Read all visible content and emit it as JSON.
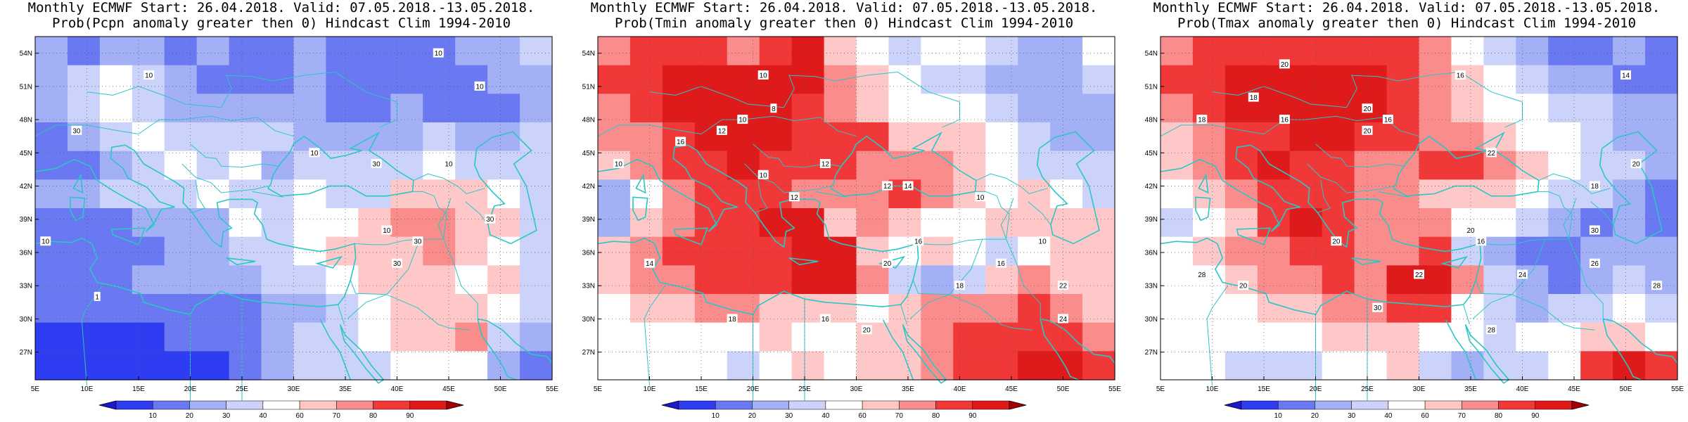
{
  "panels": [
    {
      "title_line1": "Monthly ECMWF Start: 26.04.2018. Valid: 07.05.2018.-13.05.2018.",
      "title_line2": "Prob(Pcpn anomaly greater then 0) Hindcast Clim 1994-2010",
      "variable": "Pcpn",
      "field": [
        [
          30,
          20,
          30,
          30,
          20,
          30,
          20,
          20,
          30,
          20,
          20,
          20,
          20,
          30,
          30,
          40
        ],
        [
          30,
          40,
          50,
          40,
          30,
          20,
          20,
          20,
          30,
          20,
          20,
          20,
          20,
          20,
          30,
          30
        ],
        [
          30,
          40,
          50,
          40,
          30,
          30,
          30,
          30,
          30,
          20,
          20,
          30,
          20,
          20,
          20,
          30
        ],
        [
          20,
          30,
          40,
          50,
          40,
          40,
          40,
          40,
          30,
          30,
          30,
          30,
          40,
          30,
          30,
          40
        ],
        [
          20,
          20,
          30,
          40,
          50,
          40,
          50,
          30,
          40,
          40,
          40,
          40,
          50,
          40,
          40,
          40
        ],
        [
          30,
          30,
          40,
          40,
          40,
          50,
          40,
          40,
          50,
          40,
          40,
          60,
          60,
          60,
          50,
          40
        ],
        [
          20,
          20,
          20,
          30,
          30,
          30,
          50,
          40,
          50,
          50,
          60,
          70,
          70,
          60,
          60,
          40
        ],
        [
          20,
          20,
          20,
          20,
          30,
          30,
          40,
          40,
          50,
          60,
          60,
          60,
          70,
          60,
          50,
          40
        ],
        [
          20,
          20,
          20,
          30,
          30,
          30,
          30,
          40,
          40,
          50,
          60,
          60,
          60,
          50,
          60,
          40
        ],
        [
          20,
          20,
          20,
          20,
          20,
          20,
          20,
          30,
          30,
          40,
          50,
          60,
          60,
          60,
          50,
          40
        ],
        [
          10,
          10,
          10,
          10,
          20,
          20,
          20,
          30,
          40,
          40,
          50,
          60,
          60,
          70,
          40,
          30
        ],
        [
          10,
          10,
          10,
          10,
          10,
          10,
          20,
          30,
          40,
          40,
          40,
          50,
          50,
          50,
          30,
          20
        ]
      ],
      "contour_labels": [
        {
          "text": "10",
          "lon": 44,
          "lat": 54
        },
        {
          "text": "10",
          "lon": 48,
          "lat": 51
        },
        {
          "text": "10",
          "lon": 16,
          "lat": 52
        },
        {
          "text": "10",
          "lon": 32,
          "lat": 45
        },
        {
          "text": "10",
          "lon": 45,
          "lat": 44
        },
        {
          "text": "30",
          "lon": 9,
          "lat": 47
        },
        {
          "text": "30",
          "lon": 38,
          "lat": 44
        },
        {
          "text": "10",
          "lon": 39,
          "lat": 38
        },
        {
          "text": "10",
          "lon": 6,
          "lat": 37
        },
        {
          "text": "30",
          "lon": 42,
          "lat": 37
        },
        {
          "text": "30",
          "lon": 49,
          "lat": 39
        },
        {
          "text": "30",
          "lon": 40,
          "lat": 35
        },
        {
          "text": "1",
          "lon": 11,
          "lat": 32
        }
      ]
    },
    {
      "title_line1": "Monthly ECMWF Start: 26.04.2018. Valid: 07.05.2018.-13.05.2018.",
      "title_line2": "Prob(Tmin anomaly greater then 0) Hindcast Clim 1994-2010",
      "variable": "Tmin",
      "field": [
        [
          70,
          80,
          80,
          80,
          70,
          80,
          90,
          60,
          50,
          40,
          50,
          50,
          40,
          30,
          30,
          50
        ],
        [
          80,
          80,
          90,
          90,
          90,
          90,
          90,
          70,
          60,
          50,
          40,
          40,
          30,
          30,
          30,
          40
        ],
        [
          70,
          80,
          90,
          90,
          90,
          90,
          80,
          70,
          60,
          50,
          50,
          50,
          40,
          30,
          30,
          30
        ],
        [
          70,
          70,
          80,
          90,
          90,
          90,
          80,
          80,
          80,
          60,
          60,
          60,
          50,
          40,
          30,
          30
        ],
        [
          60,
          70,
          80,
          80,
          90,
          80,
          80,
          80,
          70,
          70,
          70,
          60,
          50,
          40,
          40,
          40
        ],
        [
          30,
          50,
          70,
          80,
          80,
          80,
          70,
          70,
          70,
          80,
          70,
          60,
          50,
          60,
          50,
          40
        ],
        [
          30,
          60,
          70,
          80,
          80,
          90,
          90,
          60,
          70,
          60,
          50,
          50,
          60,
          60,
          60,
          60
        ],
        [
          60,
          70,
          80,
          80,
          80,
          80,
          90,
          90,
          60,
          50,
          60,
          50,
          40,
          50,
          60,
          60
        ],
        [
          60,
          70,
          70,
          80,
          80,
          80,
          90,
          90,
          70,
          40,
          30,
          40,
          60,
          70,
          60,
          60
        ],
        [
          50,
          60,
          60,
          70,
          70,
          60,
          60,
          60,
          50,
          60,
          70,
          70,
          70,
          80,
          70,
          60
        ],
        [
          50,
          50,
          50,
          50,
          50,
          60,
          50,
          50,
          60,
          60,
          70,
          80,
          80,
          80,
          80,
          70
        ],
        [
          50,
          50,
          50,
          50,
          40,
          50,
          60,
          50,
          60,
          60,
          70,
          80,
          80,
          90,
          90,
          80
        ]
      ],
      "contour_labels": [
        {
          "text": "10",
          "lon": 21,
          "lat": 52
        },
        {
          "text": "8",
          "lon": 22,
          "lat": 49
        },
        {
          "text": "10",
          "lon": 19,
          "lat": 48
        },
        {
          "text": "12",
          "lon": 17,
          "lat": 47
        },
        {
          "text": "16",
          "lon": 13,
          "lat": 46
        },
        {
          "text": "10",
          "lon": 7,
          "lat": 44
        },
        {
          "text": "12",
          "lon": 27,
          "lat": 44
        },
        {
          "text": "10",
          "lon": 21,
          "lat": 43
        },
        {
          "text": "12",
          "lon": 24,
          "lat": 41
        },
        {
          "text": "14",
          "lon": 35,
          "lat": 42
        },
        {
          "text": "12",
          "lon": 33,
          "lat": 42
        },
        {
          "text": "10",
          "lon": 42,
          "lat": 41
        },
        {
          "text": "16",
          "lon": 36,
          "lat": 37
        },
        {
          "text": "20",
          "lon": 33,
          "lat": 35
        },
        {
          "text": "18",
          "lon": 18,
          "lat": 30
        },
        {
          "text": "16",
          "lon": 27,
          "lat": 30
        },
        {
          "text": "20",
          "lon": 31,
          "lat": 29
        },
        {
          "text": "16",
          "lon": 44,
          "lat": 35
        },
        {
          "text": "22",
          "lon": 50,
          "lat": 33
        },
        {
          "text": "24",
          "lon": 50,
          "lat": 30
        },
        {
          "text": "14",
          "lon": 10,
          "lat": 35
        },
        {
          "text": "10",
          "lon": 48,
          "lat": 37
        },
        {
          "text": "18",
          "lon": 40,
          "lat": 33
        }
      ]
    },
    {
      "title_line1": "Monthly ECMWF Start: 26.04.2018. Valid: 07.05.2018.-13.05.2018.",
      "title_line2": "Prob(Tmax anomaly greater then 0) Hindcast Clim 1994-2010",
      "variable": "Tmax",
      "field": [
        [
          70,
          80,
          80,
          80,
          80,
          80,
          80,
          80,
          70,
          50,
          40,
          30,
          20,
          20,
          30,
          20
        ],
        [
          80,
          80,
          90,
          90,
          90,
          90,
          90,
          80,
          70,
          60,
          50,
          40,
          30,
          30,
          20,
          20
        ],
        [
          70,
          80,
          90,
          90,
          90,
          90,
          90,
          80,
          70,
          60,
          50,
          50,
          40,
          40,
          30,
          30
        ],
        [
          60,
          70,
          80,
          80,
          90,
          90,
          80,
          80,
          70,
          70,
          60,
          50,
          50,
          40,
          30,
          30
        ],
        [
          60,
          70,
          80,
          90,
          80,
          80,
          70,
          70,
          80,
          80,
          70,
          60,
          50,
          40,
          40,
          30
        ],
        [
          50,
          60,
          70,
          80,
          80,
          80,
          70,
          70,
          60,
          60,
          60,
          50,
          40,
          40,
          30,
          20
        ],
        [
          40,
          50,
          60,
          80,
          90,
          80,
          70,
          70,
          70,
          50,
          50,
          40,
          30,
          20,
          30,
          20
        ],
        [
          50,
          60,
          70,
          70,
          80,
          80,
          70,
          70,
          80,
          40,
          30,
          20,
          20,
          30,
          30,
          30
        ],
        [
          50,
          50,
          60,
          70,
          70,
          80,
          70,
          90,
          90,
          70,
          40,
          30,
          20,
          30,
          40,
          30
        ],
        [
          50,
          50,
          50,
          60,
          60,
          70,
          70,
          80,
          80,
          50,
          40,
          30,
          40,
          40,
          50,
          40
        ],
        [
          50,
          50,
          50,
          50,
          50,
          60,
          60,
          60,
          50,
          50,
          40,
          50,
          50,
          60,
          60,
          50
        ],
        [
          50,
          50,
          40,
          40,
          40,
          50,
          50,
          60,
          40,
          30,
          40,
          40,
          50,
          80,
          90,
          80
        ]
      ],
      "contour_labels": [
        {
          "text": "20",
          "lon": 17,
          "lat": 53
        },
        {
          "text": "16",
          "lon": 34,
          "lat": 52
        },
        {
          "text": "14",
          "lon": 50,
          "lat": 52
        },
        {
          "text": "18",
          "lon": 14,
          "lat": 50
        },
        {
          "text": "16",
          "lon": 17,
          "lat": 48
        },
        {
          "text": "18",
          "lon": 9,
          "lat": 48
        },
        {
          "text": "20",
          "lon": 25,
          "lat": 49
        },
        {
          "text": "20",
          "lon": 25,
          "lat": 47
        },
        {
          "text": "16",
          "lon": 27,
          "lat": 48
        },
        {
          "text": "22",
          "lon": 37,
          "lat": 45
        },
        {
          "text": "20",
          "lon": 51,
          "lat": 44
        },
        {
          "text": "18",
          "lon": 47,
          "lat": 42
        },
        {
          "text": "20",
          "lon": 35,
          "lat": 38
        },
        {
          "text": "16",
          "lon": 36,
          "lat": 37
        },
        {
          "text": "22",
          "lon": 30,
          "lat": 34
        },
        {
          "text": "24",
          "lon": 40,
          "lat": 34
        },
        {
          "text": "26",
          "lon": 47,
          "lat": 35
        },
        {
          "text": "30",
          "lon": 47,
          "lat": 38
        },
        {
          "text": "20",
          "lon": 22,
          "lat": 37
        },
        {
          "text": "30",
          "lon": 26,
          "lat": 31
        },
        {
          "text": "28",
          "lon": 9,
          "lat": 34
        },
        {
          "text": "20",
          "lon": 13,
          "lat": 33
        },
        {
          "text": "28",
          "lon": 37,
          "lat": 29
        },
        {
          "text": "28",
          "lon": 53,
          "lat": 33
        }
      ]
    }
  ],
  "lat_ticks": [
    "54N",
    "51N",
    "48N",
    "45N",
    "42N",
    "39N",
    "36N",
    "33N",
    "30N",
    "27N"
  ],
  "lon_ticks": [
    "5E",
    "10E",
    "15E",
    "20E",
    "25E",
    "30E",
    "35E",
    "40E",
    "45E",
    "50E",
    "55E"
  ],
  "colorbar": {
    "labels": [
      "10",
      "20",
      "30",
      "40",
      "60",
      "70",
      "80",
      "90"
    ],
    "colors": [
      "#1a1acd",
      "#2e3cf2",
      "#6a78f2",
      "#a3b0f6",
      "#ccd3fa",
      "#ffffff",
      "#ffc8c8",
      "#fb8c8c",
      "#f03838",
      "#de1a1a",
      "#a60000"
    ]
  }
}
